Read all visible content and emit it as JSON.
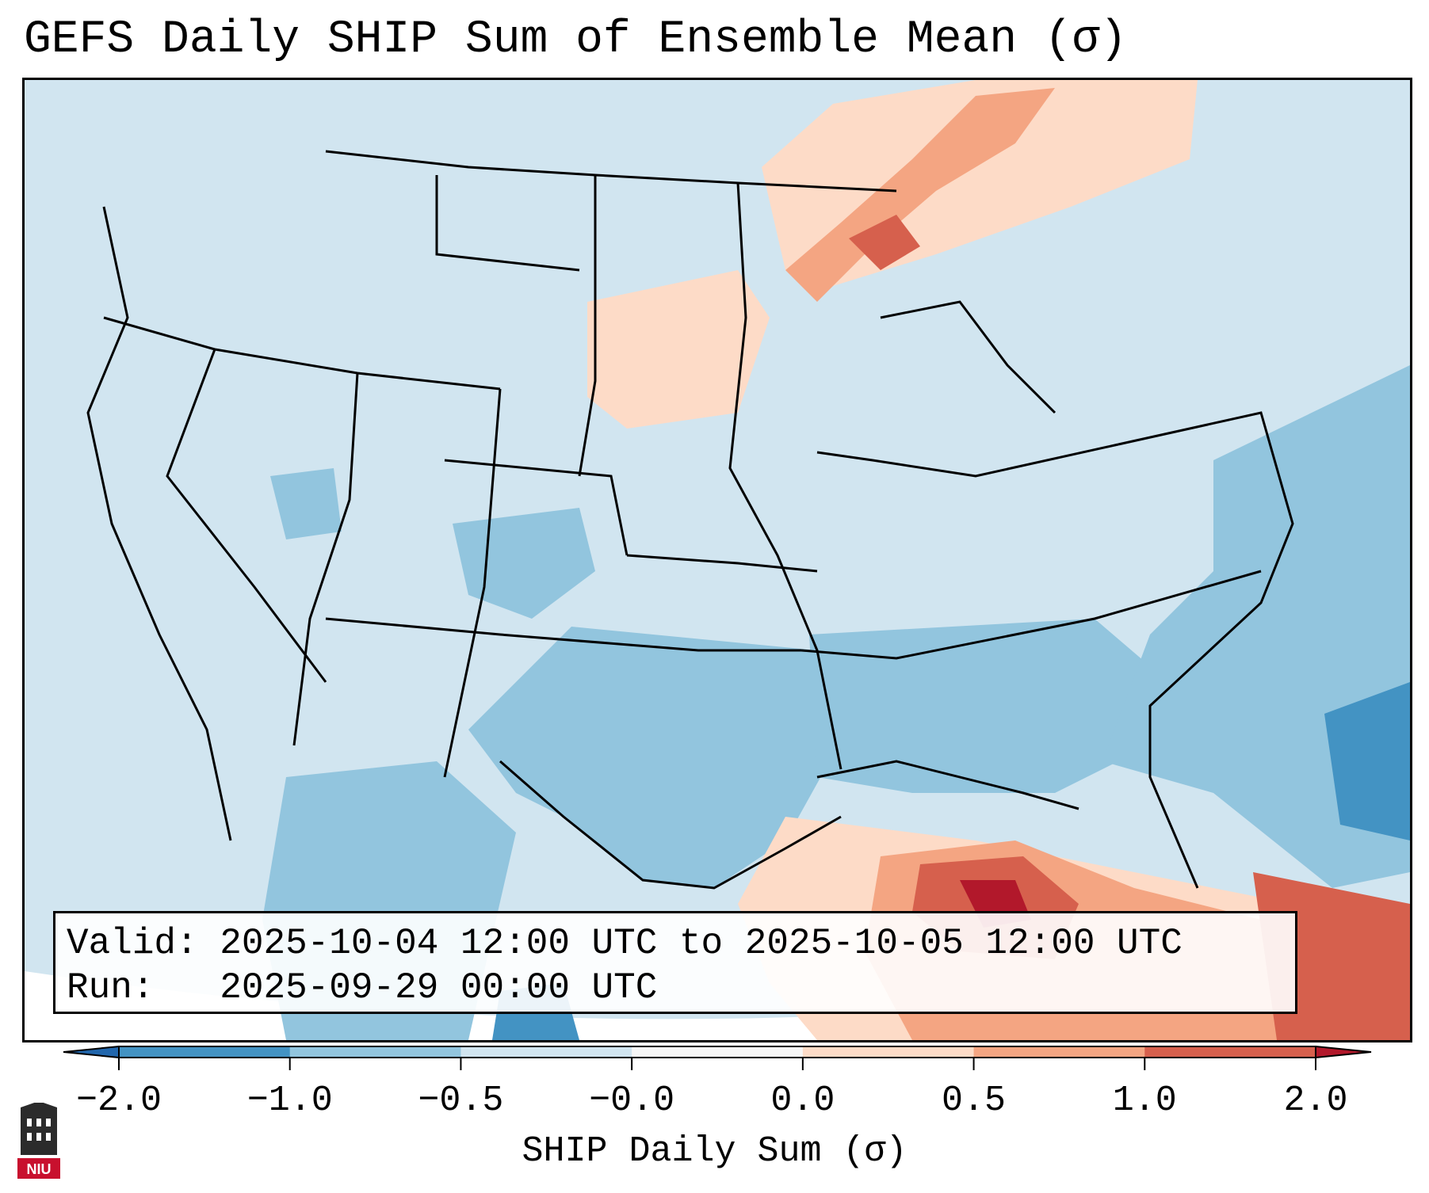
{
  "title": "GEFS Daily SHIP Sum of Ensemble Mean (σ)",
  "info": {
    "valid_label": "Valid:",
    "valid_value": "2025-10-04 12:00 UTC to 2025-10-05 12:00 UTC",
    "run_label": "Run:",
    "run_value": "2025-09-29 00:00 UTC"
  },
  "colorbar": {
    "label": "SHIP Daily Sum (σ)",
    "ticks": [
      "−2.0",
      "−1.0",
      "−0.5",
      "−0.0",
      "0.0",
      "0.5",
      "1.0",
      "2.0"
    ],
    "bin_colors": [
      "#4393c3",
      "#92c5de",
      "#d1e5f0",
      "#f7f7f7",
      "#fddbc7",
      "#f4a582",
      "#d6604d"
    ],
    "under_color": "#2166ac",
    "over_color": "#b2182b"
  },
  "logo": {
    "text": "NIU",
    "icon": "niu-tower-icon"
  }
}
